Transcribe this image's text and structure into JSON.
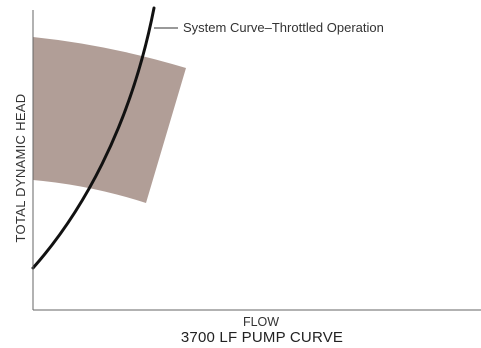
{
  "diagram": {
    "title": "3700 LF PUMP CURVE",
    "xlabel": "FLOW",
    "ylabel": "TOTAL DYNAMIC HEAD",
    "callout": "System Curve–Throttled Operation",
    "colors": {
      "band": "#b19e97",
      "curve": "#111111",
      "axis": "#666666",
      "text": "#333333"
    }
  }
}
